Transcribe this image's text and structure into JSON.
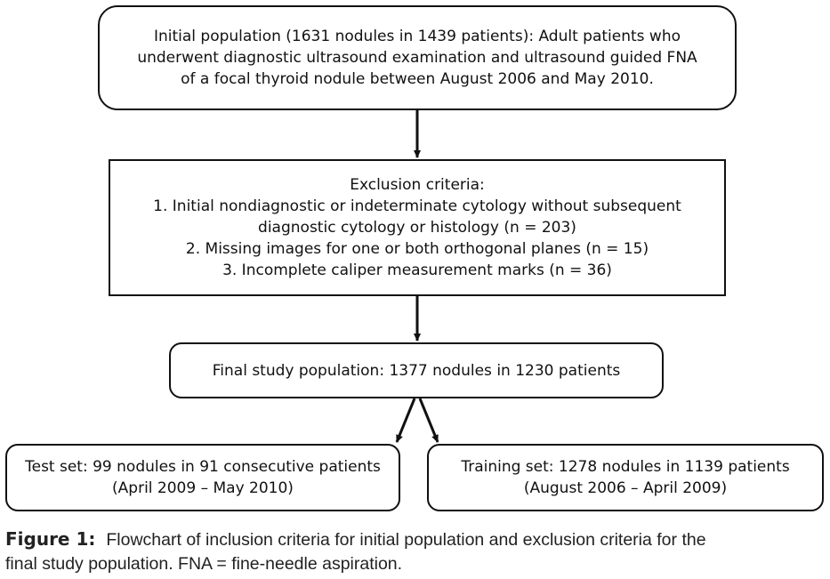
{
  "flowchart": {
    "initial_population": {
      "lines": [
        "Initial population (1631 nodules in 1439 patients): Adult patients who",
        "underwent diagnostic ultrasound examination and ultrasound guided FNA",
        "of a focal thyroid nodule between August 2006 and May 2010."
      ]
    },
    "exclusion_criteria": {
      "lines": [
        "Exclusion criteria:",
        "1. Initial nondiagnostic or indeterminate cytology without subsequent",
        "diagnostic cytology or histology (n = 203)",
        "2. Missing images for one or both orthogonal planes (n = 15)",
        "3. Incomplete caliper measurement marks (n = 36)"
      ]
    },
    "final_population": {
      "text": "Final study population: 1377 nodules in 1230 patients"
    },
    "test_set": {
      "lines": [
        "Test set: 99 nodules in 91 consecutive patients",
        "(April 2009 – May 2010)"
      ]
    },
    "training_set": {
      "lines": [
        "Training set: 1278 nodules in 1139 patients",
        "(August 2006 – April 2009)"
      ]
    }
  },
  "caption": {
    "label": "Figure 1:",
    "lines": [
      "Flowchart of inclusion criteria for initial population and exclusion criteria for the",
      "final study population. FNA = fine-needle aspiration."
    ]
  },
  "colors": {
    "stroke": "#111111",
    "background": "#ffffff"
  }
}
